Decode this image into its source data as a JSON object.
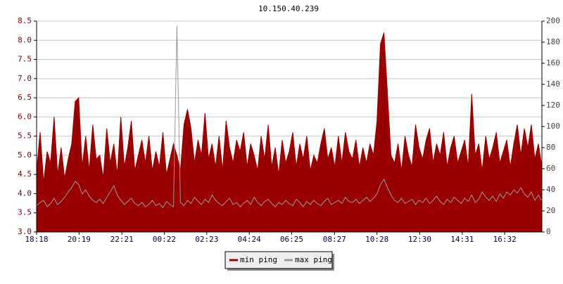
{
  "chart_data": {
    "type": "line",
    "title": "10.150.40.239",
    "x": [
      0,
      10,
      20,
      30,
      40,
      50,
      60,
      70,
      80,
      90,
      100,
      110,
      120,
      130,
      140,
      150,
      160,
      170,
      180,
      190,
      200,
      210,
      220,
      230,
      240,
      250,
      260,
      270,
      280,
      290,
      300,
      310,
      320,
      330,
      340,
      350,
      360,
      370,
      380,
      390,
      400,
      410,
      420,
      430,
      440,
      450,
      460,
      470,
      480,
      490,
      500,
      510,
      520,
      530,
      540,
      550,
      560,
      570,
      580,
      590,
      600,
      610,
      620,
      630,
      640,
      650,
      660,
      670,
      680,
      690,
      700,
      710,
      720,
      730,
      740,
      750,
      760,
      770,
      780,
      790,
      800,
      810,
      820,
      830,
      840,
      850,
      860,
      870,
      880,
      890,
      900,
      910,
      920,
      930,
      940,
      950,
      960,
      970,
      980,
      990,
      1000,
      1010,
      1020,
      1030,
      1040,
      1050,
      1060,
      1070,
      1080,
      1090,
      1100,
      1110,
      1120,
      1130,
      1140,
      1150,
      1160,
      1170,
      1180,
      1190,
      1200,
      1210,
      1220,
      1230,
      1240,
      1250,
      1260,
      1270,
      1280,
      1290,
      1300,
      1310,
      1320,
      1330,
      1340,
      1350,
      1360,
      1370,
      1380,
      1390,
      1400,
      1410,
      1420,
      1430,
      1440
    ],
    "xlim": [
      0,
      1440
    ],
    "xticks": [
      {
        "value": 0,
        "label": "18:18"
      },
      {
        "value": 121,
        "label": "20:19"
      },
      {
        "value": 243,
        "label": "22:21"
      },
      {
        "value": 364,
        "label": "00:22"
      },
      {
        "value": 485,
        "label": "02:23"
      },
      {
        "value": 606,
        "label": "04:24"
      },
      {
        "value": 727,
        "label": "06:25"
      },
      {
        "value": 849,
        "label": "08:27"
      },
      {
        "value": 970,
        "label": "10:28"
      },
      {
        "value": 1092,
        "label": "12:30"
      },
      {
        "value": 1213,
        "label": "14:31"
      },
      {
        "value": 1334,
        "label": "16:32"
      }
    ],
    "ylim": [
      3.0,
      8.5
    ],
    "yticks": [
      {
        "value": 3.0,
        "label": "3.0"
      },
      3.5,
      {
        "value": 4.0,
        "label": "4.0"
      },
      4.5,
      {
        "value": 5.0,
        "label": "5.0"
      },
      5.5,
      {
        "value": 6.0,
        "label": "6.0"
      },
      6.5,
      {
        "value": 7.0,
        "label": "7.0"
      },
      7.5,
      {
        "value": 8.0,
        "label": "8.0"
      },
      8.5
    ],
    "y2lim": [
      0,
      200
    ],
    "y2ticks": [
      0,
      20,
      40,
      60,
      80,
      100,
      120,
      140,
      160,
      180,
      200
    ],
    "grid": true,
    "series": [
      {
        "name": "min ping",
        "color": "#990000",
        "fill": true,
        "values": [
          4.6,
          5.6,
          4.3,
          5.1,
          4.8,
          6.0,
          4.5,
          5.2,
          4.4,
          4.9,
          5.3,
          6.4,
          6.5,
          4.7,
          5.5,
          4.6,
          5.8,
          4.9,
          5.0,
          4.4,
          5.7,
          4.8,
          5.3,
          4.5,
          6.0,
          4.7,
          5.2,
          5.9,
          4.6,
          5.0,
          5.4,
          4.8,
          5.5,
          4.6,
          5.1,
          4.7,
          5.6,
          4.5,
          4.9,
          5.3,
          5.0,
          4.6,
          5.8,
          6.2,
          5.7,
          4.8,
          5.4,
          5.0,
          6.1,
          4.9,
          5.3,
          4.7,
          5.5,
          4.6,
          5.9,
          5.2,
          4.8,
          5.4,
          5.1,
          5.6,
          4.7,
          5.3,
          5.0,
          4.6,
          5.5,
          4.9,
          5.8,
          4.7,
          5.2,
          4.5,
          5.4,
          4.8,
          5.1,
          5.6,
          4.7,
          5.3,
          4.9,
          5.5,
          4.6,
          5.0,
          4.8,
          5.3,
          5.7,
          4.9,
          5.2,
          4.7,
          5.5,
          4.8,
          5.6,
          5.1,
          4.9,
          5.4,
          4.7,
          5.2,
          4.8,
          5.3,
          5.0,
          5.9,
          7.9,
          8.2,
          6.6,
          5.0,
          4.8,
          5.3,
          4.6,
          5.5,
          5.0,
          4.7,
          5.8,
          5.2,
          4.9,
          5.4,
          5.7,
          4.8,
          5.3,
          5.0,
          5.6,
          4.7,
          5.2,
          5.5,
          4.8,
          5.1,
          5.4,
          4.7,
          6.6,
          5.0,
          5.3,
          4.6,
          5.5,
          4.9,
          5.2,
          5.6,
          4.8,
          5.1,
          5.4,
          4.7,
          5.3,
          5.8,
          5.0,
          5.7,
          5.2,
          5.8,
          4.9,
          5.3,
          4.7
        ]
      },
      {
        "name": "max ping",
        "color": "#999999",
        "axis": "y2",
        "values": [
          25,
          28,
          30,
          24,
          27,
          32,
          26,
          29,
          33,
          38,
          42,
          48,
          45,
          36,
          40,
          34,
          30,
          28,
          31,
          27,
          33,
          38,
          44,
          35,
          30,
          26,
          29,
          32,
          27,
          25,
          28,
          24,
          26,
          30,
          25,
          27,
          23,
          29,
          26,
          24,
          195,
          28,
          25,
          30,
          27,
          33,
          29,
          26,
          31,
          28,
          35,
          30,
          27,
          25,
          29,
          32,
          26,
          28,
          24,
          27,
          30,
          26,
          33,
          28,
          25,
          29,
          31,
          27,
          24,
          28,
          26,
          30,
          27,
          25,
          31,
          28,
          24,
          29,
          26,
          30,
          27,
          25,
          29,
          32,
          26,
          28,
          30,
          27,
          33,
          29,
          28,
          31,
          27,
          30,
          33,
          29,
          32,
          36,
          45,
          50,
          42,
          35,
          30,
          28,
          32,
          27,
          29,
          31,
          26,
          30,
          28,
          32,
          27,
          30,
          34,
          29,
          26,
          31,
          28,
          33,
          30,
          27,
          32,
          29,
          35,
          28,
          31,
          38,
          33,
          30,
          34,
          29,
          36,
          32,
          38,
          35,
          40,
          37,
          42,
          36,
          33,
          38,
          30,
          35,
          29
        ]
      }
    ]
  }
}
